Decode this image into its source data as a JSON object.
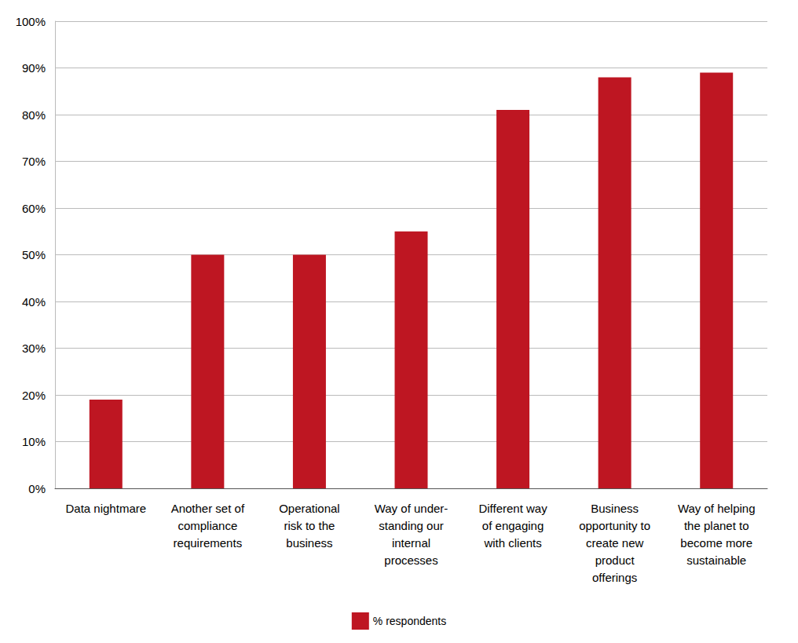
{
  "chart_data": {
    "type": "bar",
    "categories": [
      "Data nightmare",
      "Another set of\ncompliance\nrequirements",
      "Operational\nrisk to the\nbusiness",
      "Way of under-\nstanding our\ninternal\nprocesses",
      "Different way\nof engaging\nwith clients",
      "Business\nopportunity to\ncreate new\nproduct\nofferings",
      "Way of helping\nthe planet to\nbecome more\nsustainable"
    ],
    "series": [
      {
        "name": "% respondents",
        "color": "#be1622",
        "values": [
          19,
          50,
          50,
          55,
          81,
          88,
          89
        ]
      }
    ],
    "ylim": [
      0,
      100
    ],
    "yticks": [
      {
        "value": 0,
        "label": "0%"
      },
      {
        "value": 10,
        "label": "10%"
      },
      {
        "value": 20,
        "label": "20%"
      },
      {
        "value": 30,
        "label": "30%"
      },
      {
        "value": 40,
        "label": "40%"
      },
      {
        "value": 50,
        "label": "50%"
      },
      {
        "value": 60,
        "label": "60%"
      },
      {
        "value": 70,
        "label": "70%"
      },
      {
        "value": 80,
        "label": "80%"
      },
      {
        "value": 90,
        "label": "90%"
      },
      {
        "value": 100,
        "label": "100%"
      }
    ],
    "grid": true,
    "legend": "bottom"
  }
}
